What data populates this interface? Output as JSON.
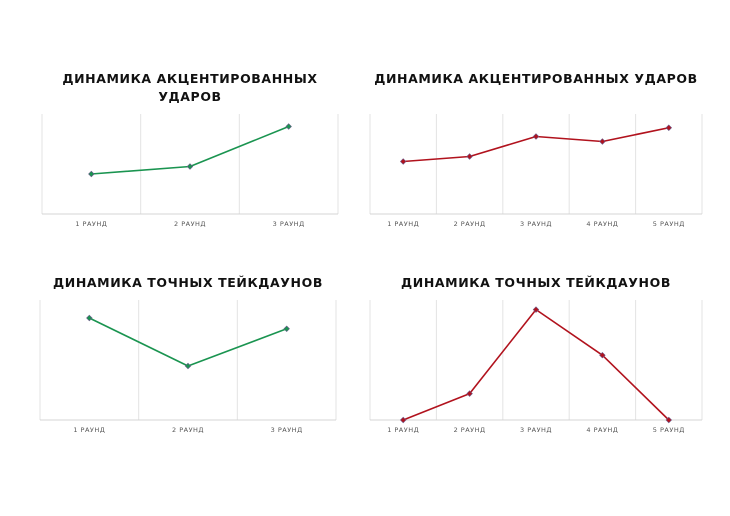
{
  "chart_data": [
    {
      "type": "line",
      "title": "ДИНАМИКА АКЦЕНТИРОВАННЫХ УДАРОВ",
      "categories": [
        "1 РАУНД",
        "2 РАУНД",
        "3 РАУНД"
      ],
      "series": [
        {
          "values": [
            5.2,
            5.8,
            9.0
          ]
        }
      ],
      "ylim": [
        0,
        10
      ],
      "grid": "vertical",
      "color": "#1a9450",
      "marker": "diamond"
    },
    {
      "type": "line",
      "title": "ДИНАМИКА АКЦЕНТИРОВАННЫХ УДАРОВ",
      "categories": [
        "1 РАУНД",
        "2 РАУНД",
        "3 РАУНД",
        "4 РАУНД",
        "5 РАУНД"
      ],
      "series": [
        {
          "values": [
            6.2,
            6.6,
            8.2,
            7.8,
            8.9
          ]
        }
      ],
      "ylim": [
        0,
        10
      ],
      "grid": "vertical",
      "color": "#b1121d",
      "marker": "diamond"
    },
    {
      "type": "line",
      "title": "ДИНАМИКА ТОЧНЫХ ТЕЙКДАУНОВ",
      "categories": [
        "1 РАУНД",
        "2 РАУНД",
        "3 РАУНД"
      ],
      "series": [
        {
          "values": [
            8.5,
            4.5,
            7.6
          ]
        }
      ],
      "ylim": [
        0,
        10
      ],
      "grid": "vertical",
      "color": "#1a9450",
      "marker": "diamond"
    },
    {
      "type": "line",
      "title": "ДИНАМИКА ТОЧНЫХ ТЕЙКДАУНОВ",
      "categories": [
        "1 РАУНД",
        "2 РАУНД",
        "3 РАУНД",
        "4 РАУНД",
        "5 РАУНД"
      ],
      "series": [
        {
          "values": [
            0,
            2.2,
            9.2,
            5.4,
            0
          ]
        }
      ],
      "ylim": [
        0,
        10
      ],
      "grid": "vertical",
      "color": "#b1121d",
      "marker": "diamond"
    }
  ]
}
